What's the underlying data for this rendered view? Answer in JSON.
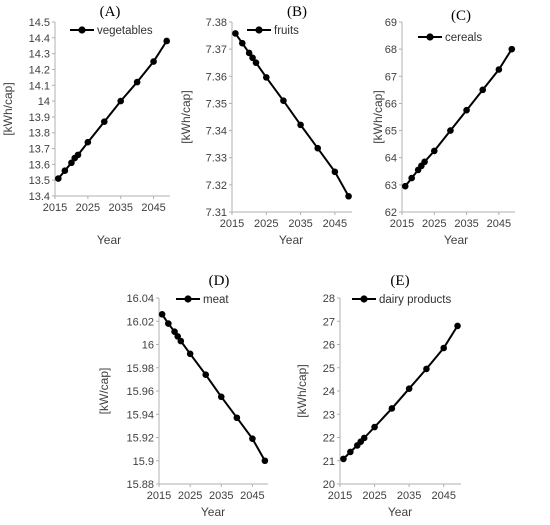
{
  "chart_data": [
    {
      "id": "A",
      "type": "line",
      "title": "(A)",
      "xlabel": "Year",
      "ylabel": "[kWh/cap]",
      "xlim": [
        2015,
        2050
      ],
      "xticks": [
        2015,
        2025,
        2035,
        2045
      ],
      "ylim": [
        13.4,
        14.5
      ],
      "yticks": [
        13.4,
        13.5,
        13.6,
        13.7,
        13.8,
        13.9,
        14.0,
        14.1,
        14.2,
        14.3,
        14.4,
        14.5
      ],
      "ytick_labels": [
        "13.4",
        "13.5",
        "13.6",
        "13.7",
        "13.8",
        "13.9",
        "14",
        "14.1",
        "14.2",
        "14.3",
        "14.4",
        "14.5"
      ],
      "legend_position": "top-left",
      "grid": false,
      "series": [
        {
          "name": "vegetables",
          "x": [
            2016,
            2018,
            2020,
            2021,
            2022,
            2025,
            2030,
            2035,
            2040,
            2045,
            2049
          ],
          "y": [
            13.51,
            13.56,
            13.61,
            13.64,
            13.66,
            13.74,
            13.87,
            14.0,
            14.12,
            14.25,
            14.38
          ]
        }
      ]
    },
    {
      "id": "B",
      "type": "line",
      "title": "(B)",
      "xlabel": "Year",
      "ylabel": "[kWh/cap]",
      "xlim": [
        2015,
        2050
      ],
      "xticks": [
        2015,
        2025,
        2035,
        2045
      ],
      "ylim": [
        7.31,
        7.38
      ],
      "yticks": [
        7.31,
        7.32,
        7.33,
        7.34,
        7.35,
        7.36,
        7.37,
        7.38
      ],
      "ytick_labels": [
        "7.31",
        "7.32",
        "7.33",
        "7.34",
        "7.35",
        "7.36",
        "7.37",
        "7.38"
      ],
      "legend_position": "top-left",
      "grid": false,
      "series": [
        {
          "name": "fruits",
          "x": [
            2016,
            2018,
            2020,
            2021,
            2022,
            2025,
            2030,
            2035,
            2040,
            2045,
            2049
          ],
          "y": [
            7.3758,
            7.3722,
            7.3686,
            7.3668,
            7.365,
            7.3596,
            7.351,
            7.3421,
            7.3335,
            7.3248,
            7.3158
          ]
        }
      ]
    },
    {
      "id": "C",
      "type": "line",
      "title": "(C)",
      "xlabel": "Year",
      "ylabel": "[kWh/cap]",
      "xlim": [
        2015,
        2050
      ],
      "xticks": [
        2015,
        2025,
        2035,
        2045
      ],
      "ylim": [
        62,
        69
      ],
      "yticks": [
        62,
        63,
        64,
        65,
        66,
        67,
        68,
        69
      ],
      "ytick_labels": [
        "62",
        "63",
        "64",
        "65",
        "66",
        "67",
        "68",
        "69"
      ],
      "legend_position": "top-left",
      "grid": false,
      "series": [
        {
          "name": "cereals",
          "x": [
            2016,
            2018,
            2020,
            2021,
            2022,
            2025,
            2030,
            2035,
            2040,
            2045,
            2049
          ],
          "y": [
            62.95,
            63.25,
            63.55,
            63.7,
            63.85,
            64.25,
            65.0,
            65.75,
            66.5,
            67.25,
            68.0
          ]
        }
      ]
    },
    {
      "id": "D",
      "type": "line",
      "title": "(D)",
      "xlabel": "Year",
      "ylabel": "[kW/cap]",
      "xlim": [
        2015,
        2050
      ],
      "xticks": [
        2015,
        2025,
        2035,
        2045
      ],
      "ylim": [
        15.88,
        16.04
      ],
      "yticks": [
        15.88,
        15.9,
        15.92,
        15.94,
        15.96,
        15.98,
        16.0,
        16.02,
        16.04
      ],
      "ytick_labels": [
        "15.88",
        "15.9",
        "15.92",
        "15.94",
        "15.96",
        "15.98",
        "16",
        "16.02",
        "16.04"
      ],
      "legend_position": "top-left",
      "grid": false,
      "series": [
        {
          "name": "meat",
          "x": [
            2016,
            2018,
            2020,
            2021,
            2022,
            2025,
            2030,
            2035,
            2040,
            2045,
            2049
          ],
          "y": [
            16.026,
            16.018,
            16.011,
            16.007,
            16.003,
            15.992,
            15.974,
            15.955,
            15.937,
            15.919,
            15.9
          ]
        }
      ]
    },
    {
      "id": "E",
      "type": "line",
      "title": "(E)",
      "xlabel": "Year",
      "ylabel": "[kWh/cap]",
      "xlim": [
        2015,
        2050
      ],
      "xticks": [
        2015,
        2025,
        2035,
        2045
      ],
      "ylim": [
        20,
        28
      ],
      "yticks": [
        20,
        21,
        22,
        23,
        24,
        25,
        26,
        27,
        28
      ],
      "ytick_labels": [
        "20",
        "21",
        "22",
        "23",
        "24",
        "25",
        "26",
        "27",
        "28"
      ],
      "legend_position": "top-left",
      "grid": false,
      "series": [
        {
          "name": "dairy products",
          "x": [
            2016,
            2018,
            2020,
            2021,
            2022,
            2025,
            2030,
            2035,
            2040,
            2045,
            2049
          ],
          "y": [
            21.08,
            21.38,
            21.66,
            21.82,
            21.98,
            22.45,
            23.25,
            24.1,
            24.95,
            25.85,
            26.8
          ]
        }
      ]
    }
  ],
  "colors": {
    "line": "#000000",
    "marker": "#000000",
    "axis": "#b0b0b0",
    "text": "#404040"
  }
}
